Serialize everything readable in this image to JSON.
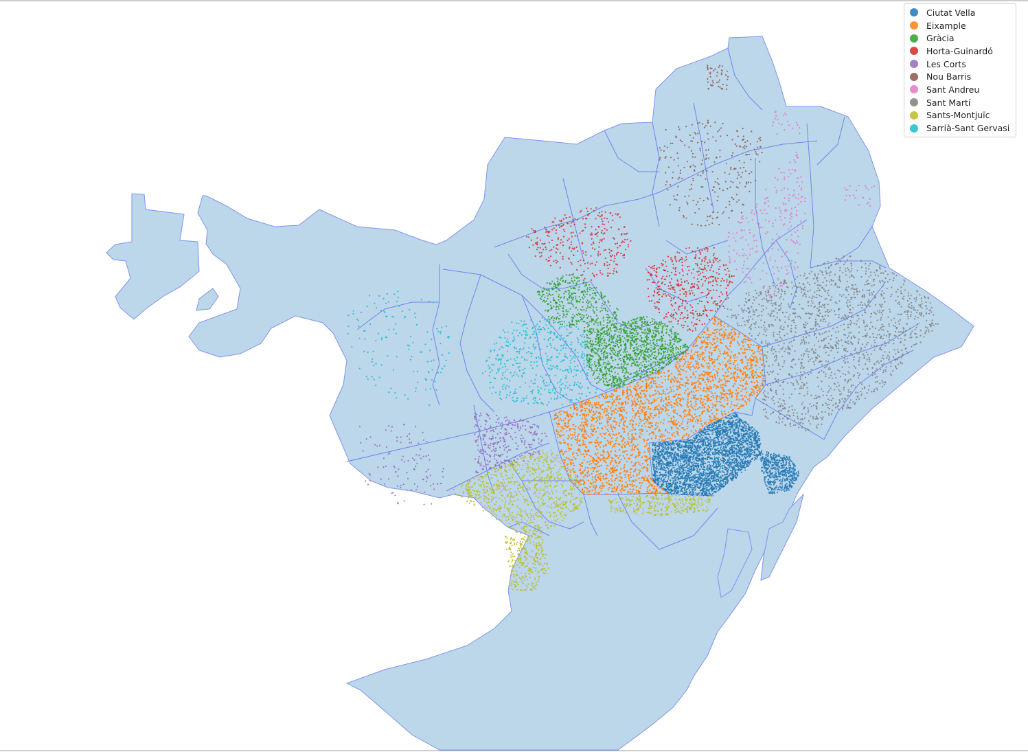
{
  "chart_data": {
    "type": "scatter",
    "title": "",
    "xlabel": "",
    "ylabel": "",
    "grid": false,
    "legend_position": "top-right",
    "basemap": {
      "land_fill": "#bcd6ea",
      "border_color": "#6f84ef"
    },
    "series": [
      {
        "name": "Ciutat Vella",
        "color": "#1f77b4",
        "count": 3400
      },
      {
        "name": "Eixample",
        "color": "#ff7f0e",
        "count": 4600
      },
      {
        "name": "Gràcia",
        "color": "#2ca02c",
        "count": 1700
      },
      {
        "name": "Horta-Guinardó",
        "color": "#d62728",
        "count": 750
      },
      {
        "name": "Les Corts",
        "color": "#9467bd",
        "count": 420
      },
      {
        "name": "Nou Barris",
        "color": "#8c564b",
        "count": 300
      },
      {
        "name": "Sant Andreu",
        "color": "#e377c2",
        "count": 300
      },
      {
        "name": "Sant Martí",
        "color": "#7f7f7f",
        "count": 1600
      },
      {
        "name": "Sants-Montjuïc",
        "color": "#bcbd22",
        "count": 1400
      },
      {
        "name": "Sarrià-Sant Gervasi",
        "color": "#17becf",
        "count": 650
      }
    ]
  }
}
